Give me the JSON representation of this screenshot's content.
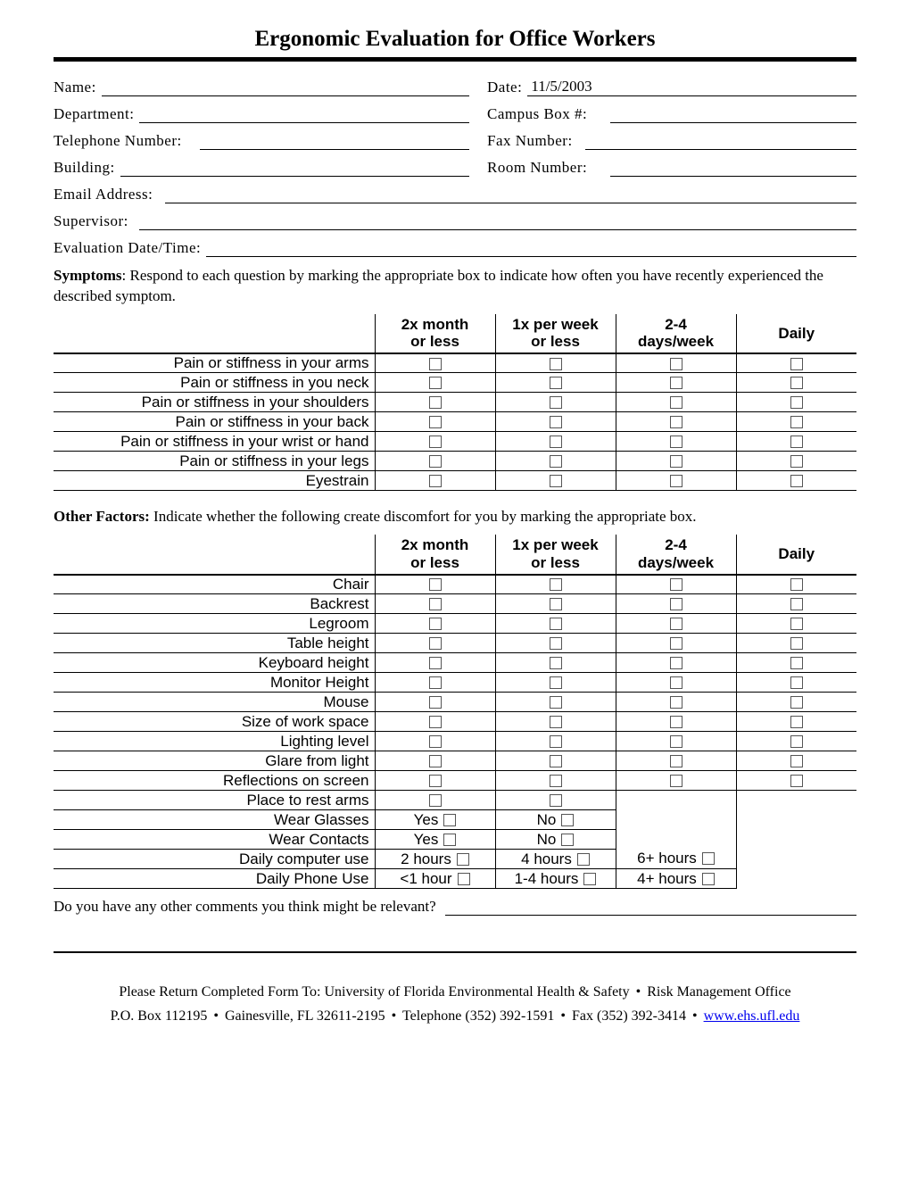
{
  "title": "Ergonomic Evaluation for Office Workers",
  "form": {
    "name_label": "Name:",
    "name_value": "",
    "date_label": "Date:",
    "date_value": "11/5/2003",
    "department_label": "Department:",
    "department_value": "",
    "campus_box_label": "Campus Box #:",
    "campus_box_value": "",
    "telephone_label": "Telephone Number:",
    "telephone_value": "",
    "fax_label": "Fax Number:",
    "fax_value": "",
    "building_label": "Building:",
    "building_value": "",
    "room_label": "Room Number:",
    "room_value": "",
    "email_label": "Email Address:",
    "email_value": "",
    "supervisor_label": "Supervisor:",
    "supervisor_value": "",
    "eval_datetime_label": "Evaluation Date/Time:",
    "eval_datetime_value": ""
  },
  "symptoms": {
    "lead": "Symptoms",
    "instructions": ": Respond to each question by marking the appropriate box to indicate how often you have recently experienced the described symptom.",
    "columns": [
      {
        "line1": "2x month",
        "line2": "or less"
      },
      {
        "line1": "1x per week",
        "line2": "or less"
      },
      {
        "line1": "2-4",
        "line2": "days/week"
      },
      {
        "line1": "Daily",
        "line2": ""
      }
    ],
    "rows": [
      "Pain or stiffness in your arms",
      "Pain or stiffness in you neck",
      "Pain or stiffness in your shoulders",
      "Pain or stiffness in your back",
      "Pain or stiffness in your wrist or hand",
      "Pain or stiffness in your legs",
      "Eyestrain"
    ]
  },
  "other": {
    "lead": "Other Factors:",
    "instructions": "  Indicate whether the following create discomfort for you by marking the appropriate box.",
    "columns": [
      {
        "line1": "2x month",
        "line2": "or less"
      },
      {
        "line1": "1x per week",
        "line2": "or less"
      },
      {
        "line1": "2-4",
        "line2": "days/week"
      },
      {
        "line1": "Daily",
        "line2": ""
      }
    ],
    "checkbox_rows": [
      {
        "label": "Chair",
        "cols": 4
      },
      {
        "label": "Backrest",
        "cols": 4
      },
      {
        "label": "Legroom",
        "cols": 4
      },
      {
        "label": "Table height",
        "cols": 4
      },
      {
        "label": "Keyboard height",
        "cols": 4
      },
      {
        "label": "Monitor Height",
        "cols": 4
      },
      {
        "label": "Mouse",
        "cols": 4
      },
      {
        "label": "Size of work space",
        "cols": 4
      },
      {
        "label": "Lighting level",
        "cols": 4
      },
      {
        "label": "Glare from light",
        "cols": 4
      },
      {
        "label": "Reflections on screen",
        "cols": 4
      },
      {
        "label": "Place to rest arms",
        "cols": 2
      }
    ],
    "labeled_rows": [
      {
        "label": "Wear Glasses",
        "opts": [
          "Yes",
          "No"
        ],
        "cols_shown": 2
      },
      {
        "label": "Wear Contacts",
        "opts": [
          "Yes",
          "No"
        ],
        "cols_shown": 2
      },
      {
        "label": "Daily computer use",
        "opts": [
          "2 hours",
          "4 hours",
          "6+ hours"
        ],
        "cols_shown": 3
      },
      {
        "label": "Daily Phone Use",
        "opts": [
          "<1 hour",
          "1-4 hours",
          "4+ hours"
        ],
        "cols_shown": 3
      }
    ]
  },
  "comments_question": "Do you have any other comments you think might be relevant?",
  "footer": {
    "line1_a": "Please Return Completed Form To: University of Florida Environmental Health & Safety",
    "line1_b": "Risk Management Office",
    "line2_a": "P.O. Box 112195",
    "line2_b": "Gainesville, FL 32611-2195",
    "line2_c": "Telephone (352) 392-1591",
    "line2_d": "Fax (352) 392-3414",
    "link": "www.ehs.ufl.edu"
  }
}
